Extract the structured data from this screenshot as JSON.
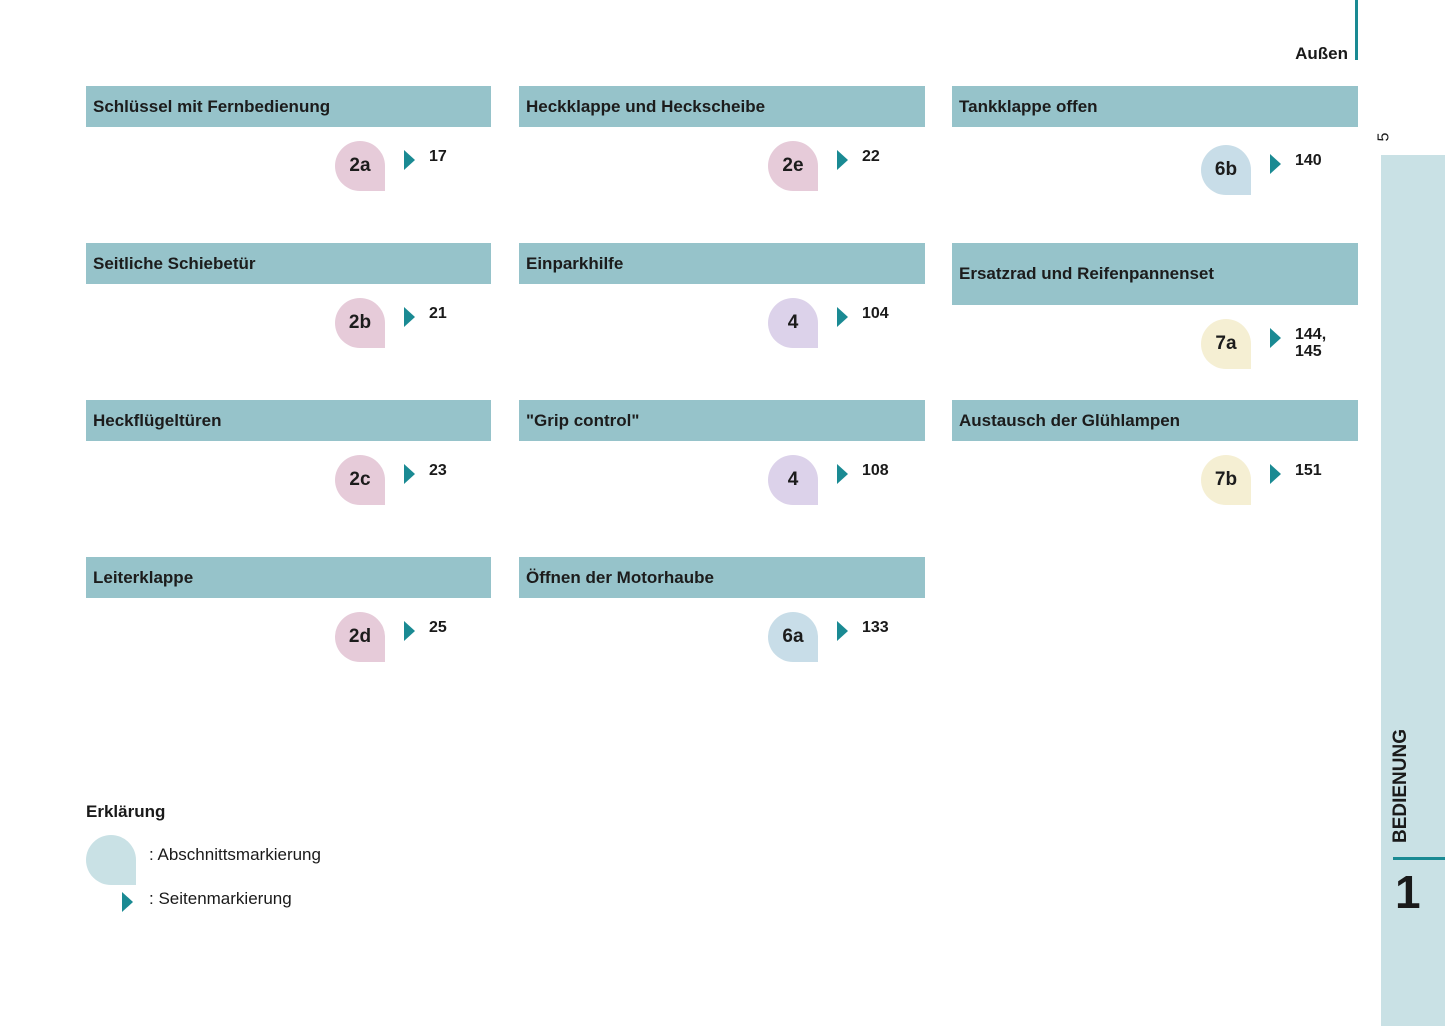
{
  "section_title": "Außen",
  "page_number": "5",
  "chapter": {
    "label": "BEDIENUNG",
    "number": "1"
  },
  "colors": {
    "header": "#96c3ca",
    "arrow": "#1a8a93",
    "pink": "#e6cbd9",
    "lavender": "#dcd2ea",
    "blue": "#c8dde8",
    "yellow": "#f5efd3",
    "sidebar": "#c9e1e5"
  },
  "cards": [
    {
      "title": "Schlüssel mit Fernbedienung",
      "badge": "2a",
      "pages": "17"
    },
    {
      "title": "Seitliche Schiebetür",
      "badge": "2b",
      "pages": "21"
    },
    {
      "title": "Heckflügeltüren",
      "badge": "2c",
      "pages": "23"
    },
    {
      "title": "Leiterklappe",
      "badge": "2d",
      "pages": "25"
    },
    {
      "title": "Heckklappe und Heckscheibe",
      "badge": "2e",
      "pages": "22"
    },
    {
      "title": "Einparkhilfe",
      "badge": "4",
      "pages": "104"
    },
    {
      "title": "\"Grip control\"",
      "badge": "4",
      "pages": "108"
    },
    {
      "title": "Öffnen der Motorhaube",
      "badge": "6a",
      "pages": "133"
    },
    {
      "title": "Tankklappe offen",
      "badge": "6b",
      "pages": "140"
    },
    {
      "title": "Ersatzrad und Reifenpannenset",
      "badge": "7a",
      "pages": "144,\n145"
    },
    {
      "title": "Austausch der Glühlampen",
      "badge": "7b",
      "pages": "151"
    }
  ],
  "legend": {
    "title": "Erklärung",
    "section_marker": ": Abschnittsmarkierung",
    "page_marker": ": Seitenmarkierung"
  }
}
